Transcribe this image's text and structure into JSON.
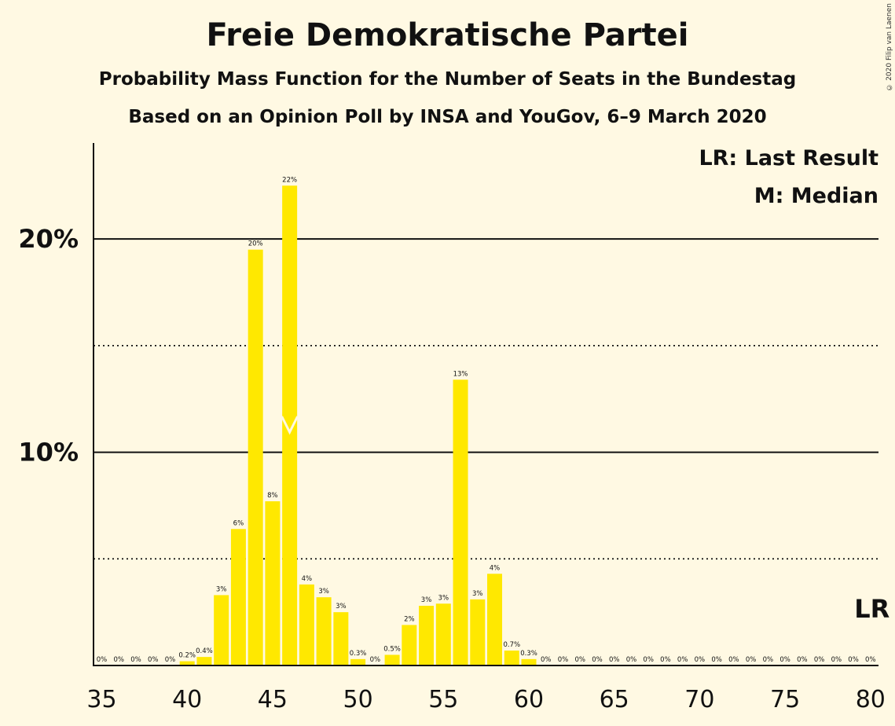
{
  "header": {
    "title": "Freie Demokratische Partei",
    "subtitle1": "Probability Mass Function for the Number of Seats in the Bundestag",
    "subtitle2": "Based on an Opinion Poll by INSA and YouGov, 6–9 March 2020",
    "copyright": "© 2020 Filip van Laenen"
  },
  "legend": {
    "last_result": "LR: Last Result",
    "median": "M: Median"
  },
  "markers": {
    "last_result_label": "LR",
    "last_result_seat": 80,
    "median_seat": 46
  },
  "colors": {
    "bar": "#FFE800",
    "background": "#FFF9E3"
  },
  "chart_data": {
    "type": "bar",
    "x": [
      35,
      36,
      37,
      38,
      39,
      40,
      41,
      42,
      43,
      44,
      45,
      46,
      47,
      48,
      49,
      50,
      51,
      52,
      53,
      54,
      55,
      56,
      57,
      58,
      59,
      60,
      61,
      62,
      63,
      64,
      65,
      66,
      67,
      68,
      69,
      70,
      71,
      72,
      73,
      74,
      75,
      76,
      77,
      78,
      79,
      80
    ],
    "values": [
      0,
      0,
      0,
      0,
      0,
      0.2,
      0.4,
      3.3,
      6.4,
      19.5,
      7.7,
      22.5,
      3.8,
      3.2,
      2.5,
      0.3,
      0,
      0.5,
      1.9,
      2.8,
      2.9,
      13.4,
      3.1,
      4.3,
      0.7,
      0.3,
      0,
      0,
      0,
      0,
      0,
      0,
      0,
      0,
      0,
      0,
      0,
      0,
      0,
      0,
      0,
      0,
      0,
      0,
      0,
      0
    ],
    "labels": [
      "0%",
      "0%",
      "0%",
      "0%",
      "0%",
      "0.2%",
      "0.4%",
      "3%",
      "6%",
      "20%",
      "8%",
      "22%",
      "4%",
      "3%",
      "3%",
      "0.3%",
      "0%",
      "0.5%",
      "2%",
      "3%",
      "3%",
      "13%",
      "3%",
      "4%",
      "0.7%",
      "0.3%",
      "0%",
      "0%",
      "0%",
      "0%",
      "0%",
      "0%",
      "0%",
      "0%",
      "0%",
      "0%",
      "0%",
      "0%",
      "0%",
      "0%",
      "0%",
      "0%",
      "0%",
      "0%",
      "0%",
      "0%"
    ],
    "xticks": [
      35,
      40,
      45,
      50,
      55,
      60,
      65,
      70,
      75,
      80
    ],
    "xtick_labels": [
      "35",
      "40",
      "45",
      "50",
      "55",
      "60",
      "65",
      "70",
      "75",
      "80"
    ],
    "yticks": [
      10,
      20
    ],
    "ytick_labels": [
      "10%",
      "20%"
    ],
    "ylim": [
      0,
      24.5
    ],
    "solid_gridlines": [
      10,
      20
    ],
    "dotted_gridlines": [
      5,
      15
    ]
  }
}
